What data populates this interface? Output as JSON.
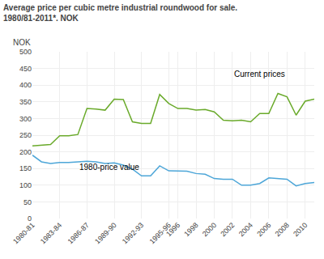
{
  "chart_data": {
    "type": "line",
    "title": "Average price per cubic metre industrial roundwood for sale.",
    "subtitle": "1980/81-2011*. NOK",
    "y_label": "NOK",
    "categories": [
      "1980-81",
      null,
      null,
      "1983-84",
      null,
      null,
      "1986-87",
      null,
      null,
      "1989-90",
      null,
      null,
      "1992-93",
      null,
      null,
      "1995-96",
      "1996",
      null,
      "1998",
      null,
      "2000",
      null,
      "2002",
      null,
      "2004",
      null,
      "2006",
      null,
      "2008",
      null,
      "2010",
      null
    ],
    "series": [
      {
        "color": "#6aaa2b",
        "values": [
          218,
          220,
          222,
          248,
          248,
          252,
          330,
          328,
          325,
          358,
          357,
          290,
          285,
          285,
          372,
          345,
          330,
          330,
          325,
          327,
          320,
          295,
          293,
          295,
          290,
          315,
          315,
          375,
          365,
          310,
          352,
          358
        ]
      },
      {
        "color": "#4da6d8",
        "values": [
          190,
          170,
          165,
          168,
          168,
          170,
          172,
          170,
          165,
          167,
          160,
          148,
          128,
          128,
          158,
          143,
          142,
          142,
          135,
          133,
          120,
          118,
          118,
          100,
          100,
          105,
          122,
          120,
          118,
          98,
          105,
          108
        ]
      }
    ],
    "ylim": [
      0,
      500
    ],
    "yticks": [
      0,
      50,
      100,
      150,
      200,
      250,
      300,
      350,
      400,
      450,
      500
    ],
    "grid": true,
    "annotations": [
      {
        "text": "Current prices",
        "x": 22,
        "y": 415
      },
      {
        "text": "1980-price value",
        "x": 5,
        "y": 135
      }
    ]
  }
}
